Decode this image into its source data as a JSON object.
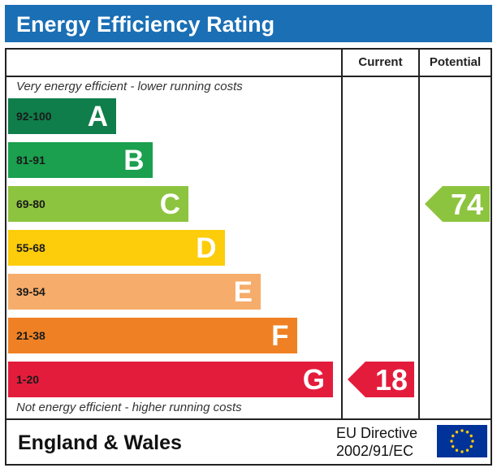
{
  "title": "Energy Efficiency Rating",
  "columns": {
    "current_label": "Current",
    "potential_label": "Potential"
  },
  "notes": {
    "top": "Very energy efficient - lower running costs",
    "bottom": "Not energy efficient - higher running costs"
  },
  "footer": {
    "country": "England & Wales",
    "directive_line1": "EU Directive",
    "directive_line2": "2002/91/EC"
  },
  "colors": {
    "title_bar": "#1a6fb5",
    "flag": "#003399",
    "flag_stars": "#ffcc00"
  },
  "chart_data": {
    "type": "bar",
    "title": "Energy Efficiency Rating",
    "bands": [
      {
        "letter": "A",
        "range": "92-100",
        "min": 92,
        "max": 100,
        "color": "#0f7e4a"
      },
      {
        "letter": "B",
        "range": "81-91",
        "min": 81,
        "max": 91,
        "color": "#1aa04e"
      },
      {
        "letter": "C",
        "range": "69-80",
        "min": 69,
        "max": 80,
        "color": "#8dc43f"
      },
      {
        "letter": "D",
        "range": "55-68",
        "min": 55,
        "max": 68,
        "color": "#fdcc0a"
      },
      {
        "letter": "E",
        "range": "39-54",
        "min": 39,
        "max": 54,
        "color": "#f6ac6a"
      },
      {
        "letter": "F",
        "range": "21-38",
        "min": 21,
        "max": 38,
        "color": "#ef8124"
      },
      {
        "letter": "G",
        "range": "1-20",
        "min": 1,
        "max": 20,
        "color": "#e41c3c"
      }
    ],
    "current": {
      "value": 18,
      "band": "G",
      "color": "#e41c3c"
    },
    "potential": {
      "value": 74,
      "band": "C",
      "color": "#8dc43f"
    }
  }
}
